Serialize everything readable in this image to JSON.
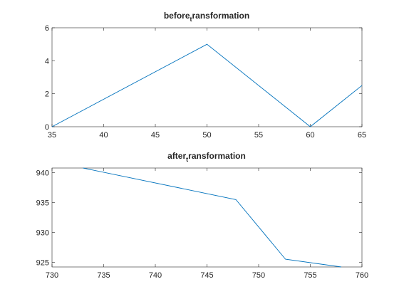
{
  "chart_data": [
    {
      "type": "line",
      "title": {
        "main": "before",
        "sub": "t",
        "rest": "ransformation"
      },
      "xlabel": "",
      "ylabel": "",
      "xlim": [
        35,
        65
      ],
      "ylim": [
        0,
        6
      ],
      "xticks": [
        35,
        40,
        45,
        50,
        55,
        60,
        65
      ],
      "yticks": [
        0,
        2,
        4,
        6
      ],
      "grid": false,
      "series": [
        {
          "x": [
            35,
            50,
            60,
            65
          ],
          "y": [
            0,
            5,
            0,
            2.5
          ],
          "color": "#0072bd"
        }
      ]
    },
    {
      "type": "line",
      "title": {
        "main": "after",
        "sub": "t",
        "rest": "ransformation"
      },
      "xlabel": "",
      "ylabel": "",
      "xlim": [
        730,
        760
      ],
      "ylim": [
        924.2,
        940.8
      ],
      "xticks": [
        730,
        735,
        740,
        745,
        750,
        755,
        760
      ],
      "yticks": [
        925,
        930,
        935,
        940
      ],
      "grid": false,
      "series": [
        {
          "x": [
            733,
            747.8,
            752.6,
            758
          ],
          "y": [
            940.8,
            935.5,
            925.5,
            924.2
          ],
          "color": "#0072bd"
        }
      ]
    }
  ]
}
